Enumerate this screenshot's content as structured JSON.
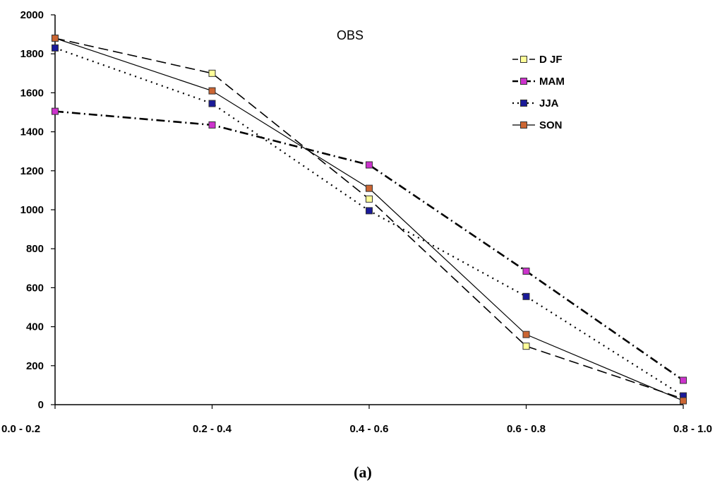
{
  "chart_data": {
    "type": "line",
    "title": "OBS",
    "caption": "(a)",
    "categories": [
      "0.0 - 0.2",
      "0.2 - 0.4",
      "0.4 - 0.6",
      "0.6 - 0.8",
      "0.8 - 1.0"
    ],
    "ylim": [
      0,
      2000
    ],
    "yticks": [
      0,
      200,
      400,
      600,
      800,
      1000,
      1200,
      1400,
      1600,
      1800,
      2000
    ],
    "grid": false,
    "legend_position": "top-right",
    "series": [
      {
        "name": "D JF",
        "values": [
          1880,
          1700,
          1055,
          300,
          30
        ],
        "color": "#ffff99",
        "line_style": "long-dash"
      },
      {
        "name": "MAM",
        "values": [
          1505,
          1435,
          1230,
          685,
          125
        ],
        "color": "#cc33cc",
        "line_style": "dash-dot"
      },
      {
        "name": "JJA",
        "values": [
          1830,
          1545,
          995,
          555,
          45
        ],
        "color": "#1a1a99",
        "line_style": "dotted"
      },
      {
        "name": "SON",
        "values": [
          1880,
          1610,
          1110,
          360,
          20
        ],
        "color": "#cc6633",
        "line_style": "solid"
      }
    ]
  }
}
